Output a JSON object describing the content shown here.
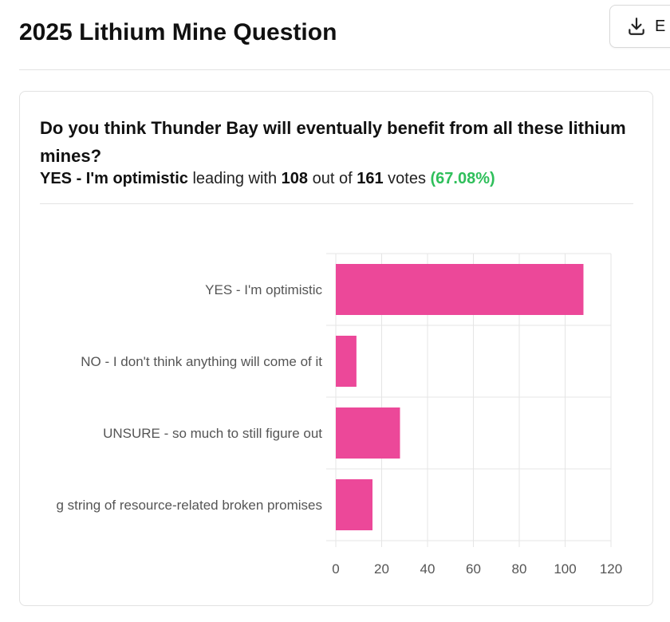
{
  "header": {
    "title": "2025 Lithium Mine Question",
    "export_label": "E",
    "export_icon": "download-icon"
  },
  "poll": {
    "question": "Do you think Thunder Bay will eventually benefit from all these lithium mines?",
    "leader": "YES - I'm optimistic",
    "leading_text": "leading with",
    "leader_votes": "108",
    "out_of_text": "out of",
    "total_votes": "161",
    "votes_text": "votes",
    "percent": "(67.08%)"
  },
  "chart_data": {
    "type": "bar",
    "orientation": "horizontal",
    "categories": [
      "YES - I'm optimistic",
      "NO - I don't think anything will come of it",
      "UNSURE - so much to still figure out",
      "g string of resource-related broken promises"
    ],
    "values": [
      108,
      9,
      28,
      16
    ],
    "xlim": [
      0,
      120
    ],
    "xticks": [
      "0",
      "20",
      "40",
      "60",
      "80",
      "100",
      "120"
    ],
    "grid": true,
    "bar_color": "#ec4899",
    "grid_color": "#e5e5e5"
  }
}
